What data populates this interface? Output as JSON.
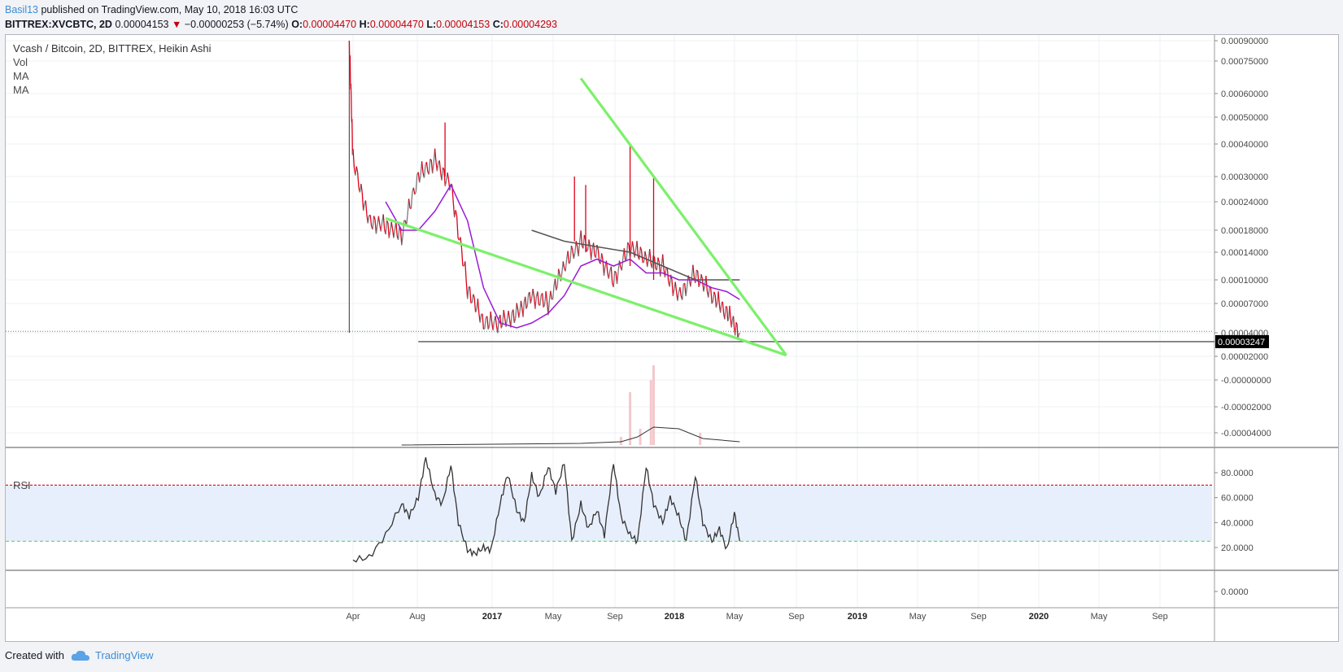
{
  "header": {
    "author": "Basil13",
    "published_text": "published on TradingView.com, May 10, 2018 16:03 UTC",
    "symbol": "BITTREX:XVCBTC, 2D",
    "last": "0.00004153",
    "change": "−0.00000253 (−5.74%)",
    "o_label": "O:",
    "o": "0.00004470",
    "h_label": "H:",
    "h": "0.00004470",
    "l_label": "L:",
    "l": "0.00004153",
    "c_label": "C:",
    "c": "0.00004293"
  },
  "legend": {
    "title": "Vcash / Bitcoin, 2D, BITTREX, Heikin Ashi",
    "vol": "Vol",
    "ma1": "MA",
    "ma2": "MA"
  },
  "rsi_label": "RSI",
  "footer": {
    "created_with": "Created with",
    "brand": "TradingView"
  },
  "colors": {
    "up": "#7a7a7a",
    "down": "#e0001a",
    "trendline": "#7cf06a",
    "ma_purple": "#9a1bd6",
    "ma_gray": "#555555",
    "rsi_line": "#333333",
    "rsi_band": "#e8effc",
    "rsi_upper": "#e0001a",
    "rsi_lower": "#55dd55",
    "price_tag_bg": "#000000"
  },
  "chart_data": [
    {
      "type": "line",
      "title": "Vcash / Bitcoin, 2D, BITTREX, Heikin Ashi",
      "price_axis_ticks": [
        "0.00090000",
        "0.00075000",
        "0.00060000",
        "0.00050000",
        "0.00040000",
        "0.00030000",
        "0.00024000",
        "0.00018000",
        "0.00014000",
        "0.00010000",
        "0.00007000",
        "0.00004000",
        "0.00002000",
        "-0.00000000",
        "-0.00002000",
        "-0.00004000"
      ],
      "current_price_tag": "0.00003247",
      "time_axis_ticks": [
        "Apr",
        "Aug",
        "2017",
        "May",
        "Sep",
        "2018",
        "May",
        "Sep",
        "2019",
        "May",
        "Sep",
        "2020",
        "May",
        "Sep"
      ],
      "bold_ticks": [
        "2017",
        "2018",
        "2019",
        "2020"
      ],
      "series": [
        {
          "name": "",
          "x": [
            "2016-03-25",
            "2016-04-01",
            "2016-05-01",
            "2016-06-01",
            "2016-07-01",
            "2016-08-01",
            "2016-09-01",
            "2016-10-01",
            "2016-11-01",
            "2016-12-01",
            "2017-01-01",
            "2017-02-01",
            "2017-03-01",
            "2017-04-01",
            "2017-05-01",
            "2017-06-01",
            "2017-07-01",
            "2017-08-01",
            "2017-09-01",
            "2017-10-01",
            "2017-11-01",
            "2017-12-01",
            "2018-01-01",
            "2018-02-01",
            "2018-03-01",
            "2018-03-25"
          ],
          "values": [
            0.0009,
            0.00035,
            0.0002,
            0.00019,
            0.00017,
            0.0003,
            0.00035,
            0.00028,
            9e-05,
            5e-05,
            5e-05,
            6e-05,
            8e-05,
            7e-05,
            0.00012,
            0.00016,
            0.00014,
            0.0001,
            0.00015,
            0.00013,
            0.00012,
            8e-05,
            0.00011,
            8e-05,
            6e-05,
            4e-05
          ]
        }
      ],
      "ma_series": [
        {
          "name": "MA",
          "color": "#9a1bd6",
          "x": [
            "2016-06-01",
            "2016-07-01",
            "2016-08-01",
            "2016-09-01",
            "2016-10-01",
            "2016-11-01",
            "2016-12-01",
            "2017-01-01",
            "2017-02-01",
            "2017-03-01",
            "2017-04-01",
            "2017-05-01",
            "2017-06-01",
            "2017-07-01",
            "2017-08-01",
            "2017-09-01",
            "2017-10-01",
            "2017-11-01",
            "2017-12-01",
            "2018-01-01",
            "2018-02-01",
            "2018-03-01",
            "2018-03-25"
          ],
          "values": [
            0.00024,
            0.00018,
            0.00018,
            0.00022,
            0.00028,
            0.0002,
            9e-05,
            5e-05,
            4.5e-05,
            5e-05,
            6e-05,
            8e-05,
            0.00012,
            0.00013,
            0.00012,
            0.00013,
            0.00011,
            0.00011,
            0.0001,
            0.0001,
            9e-05,
            8.5e-05,
            7.5e-05
          ]
        },
        {
          "name": "MA",
          "color": "#555555",
          "x": [
            "2017-03-01",
            "2017-05-01",
            "2017-07-01",
            "2017-09-01",
            "2017-11-01",
            "2018-01-01",
            "2018-03-25"
          ],
          "values": [
            0.00018,
            0.00016,
            0.00015,
            0.00014,
            0.00012,
            0.0001,
            0.0001
          ]
        }
      ],
      "trendlines": [
        {
          "from": [
            "2016-06-01",
            0.000205
          ],
          "to": [
            "2018-06-20",
            2.1e-05
          ]
        },
        {
          "from": [
            "2017-06-01",
            0.00067
          ],
          "to": [
            "2018-06-20",
            2.1e-05
          ]
        }
      ],
      "support_line": {
        "from": "2016-08-01",
        "value": 3.247e-05
      }
    },
    {
      "type": "line",
      "title": "RSI",
      "y_axis_ticks": [
        "80.0000",
        "60.0000",
        "40.0000",
        "20.0000",
        "0.0000"
      ],
      "ylim": [
        0,
        90
      ],
      "upper_band": 70,
      "lower_band": 25,
      "series": [
        {
          "name": "",
          "x": [
            "2016-04-01",
            "2016-05-01",
            "2016-06-01",
            "2016-07-01",
            "2016-07-15",
            "2016-08-01",
            "2016-08-15",
            "2016-09-01",
            "2016-09-15",
            "2016-10-01",
            "2016-10-15",
            "2016-11-01",
            "2016-11-15",
            "2016-12-01",
            "2016-12-15",
            "2017-01-01",
            "2017-01-15",
            "2017-02-01",
            "2017-02-15",
            "2017-03-01",
            "2017-03-15",
            "2017-04-01",
            "2017-04-15",
            "2017-05-01",
            "2017-05-15",
            "2017-06-01",
            "2017-06-15",
            "2017-07-01",
            "2017-07-15",
            "2017-08-01",
            "2017-08-15",
            "2017-09-01",
            "2017-09-15",
            "2017-10-01",
            "2017-10-15",
            "2017-11-01",
            "2017-11-15",
            "2017-12-01",
            "2017-12-15",
            "2018-01-01",
            "2018-01-15",
            "2018-02-01",
            "2018-02-15",
            "2018-03-01",
            "2018-03-15",
            "2018-03-25"
          ],
          "values": [
            10,
            12,
            30,
            55,
            45,
            60,
            92,
            62,
            55,
            86,
            40,
            18,
            15,
            20,
            18,
            55,
            79,
            50,
            40,
            78,
            60,
            85,
            65,
            88,
            25,
            55,
            35,
            50,
            30,
            88,
            45,
            30,
            25,
            85,
            55,
            40,
            60,
            45,
            25,
            78,
            40,
            25,
            35,
            18,
            48,
            25
          ]
        }
      ]
    }
  ]
}
